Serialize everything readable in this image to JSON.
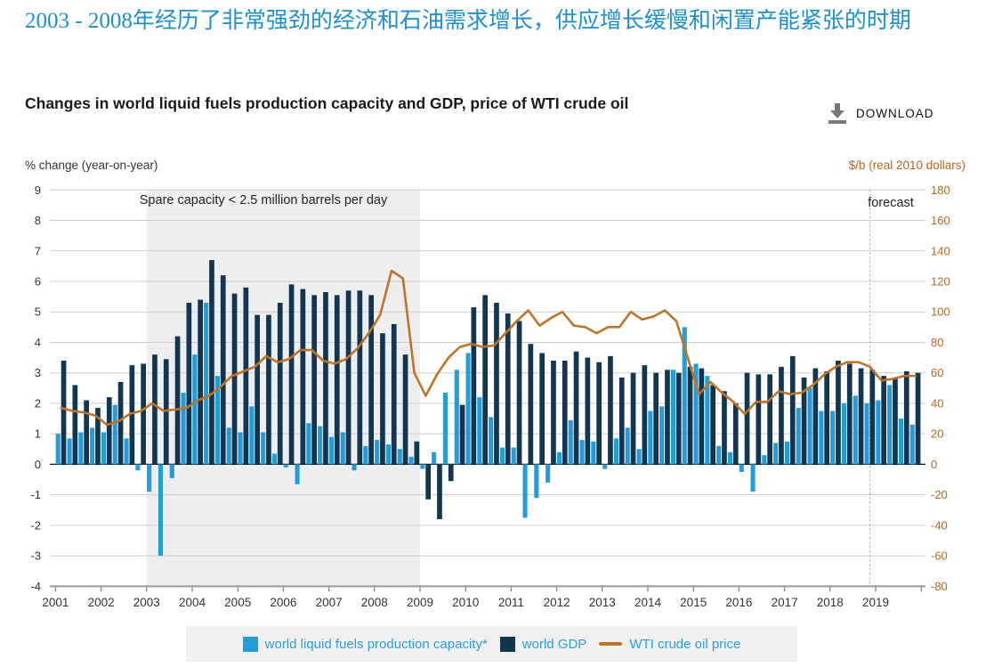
{
  "header": {
    "title_zh": "2003 - 2008年经历了非常强劲的经济和石油需求增长，供应增长缓慢和闲置产能紧张的时期",
    "chart_title": "Changes in world liquid fuels production capacity and GDP, price of WTI crude oil",
    "download_label": "DOWNLOAD"
  },
  "chart_data": {
    "type": "bar+line combo",
    "title": "Changes in world liquid fuels production capacity and GDP, price of WTI crude oil",
    "left_axis": {
      "label": "% change (year-on-year)",
      "min": -4,
      "max": 9,
      "step": 1
    },
    "right_axis": {
      "label": "$/b (real 2010 dollars)",
      "min": -80,
      "max": 180,
      "step": 20
    },
    "x": {
      "years": [
        "2001",
        "2002",
        "2003",
        "2004",
        "2005",
        "2006",
        "2007",
        "2008",
        "2009",
        "2010",
        "2011",
        "2012",
        "2013",
        "2014",
        "2015",
        "2016",
        "2017",
        "2018",
        "2019"
      ],
      "quarters_per_year": 4
    },
    "series": [
      {
        "name": "world liquid fuels production capacity*",
        "type": "bar",
        "axis": "left",
        "color": "#219dd8",
        "values": [
          1.0,
          0.85,
          1.05,
          1.2,
          1.05,
          1.95,
          0.85,
          -0.2,
          -0.9,
          -3.0,
          -0.45,
          2.35,
          3.6,
          5.3,
          2.9,
          1.2,
          1.05,
          1.9,
          1.05,
          0.35,
          -0.1,
          -0.65,
          1.35,
          1.25,
          0.9,
          1.05,
          -0.2,
          0.6,
          0.8,
          0.65,
          0.5,
          0.25,
          -0.15,
          0.4,
          2.35,
          3.1,
          3.65,
          2.2,
          1.55,
          0.55,
          0.55,
          -1.75,
          -1.1,
          -0.6,
          0.4,
          1.45,
          0.8,
          0.75,
          -0.15,
          0.85,
          1.2,
          0.5,
          1.75,
          1.9,
          3.1,
          4.5,
          3.3,
          2.9,
          0.6,
          0.4,
          -0.25,
          -0.9,
          0.3,
          0.7,
          0.75,
          1.85,
          2.5,
          1.75,
          1.75,
          2.0,
          2.25,
          2.0,
          2.1,
          2.6,
          1.5,
          1.3
        ]
      },
      {
        "name": "world GDP",
        "type": "bar",
        "axis": "left",
        "color": "#12364f",
        "values": [
          3.4,
          2.6,
          2.1,
          1.85,
          2.2,
          2.7,
          3.25,
          3.3,
          3.6,
          3.45,
          4.2,
          5.3,
          5.4,
          6.7,
          6.2,
          5.6,
          5.8,
          4.9,
          4.9,
          5.3,
          5.9,
          5.75,
          5.55,
          5.65,
          5.55,
          5.7,
          5.7,
          5.55,
          4.3,
          4.6,
          3.6,
          0.75,
          -1.15,
          -1.8,
          -0.55,
          1.95,
          5.15,
          5.55,
          5.3,
          4.95,
          4.7,
          3.95,
          3.65,
          3.4,
          3.4,
          3.7,
          3.5,
          3.35,
          3.55,
          2.85,
          3.0,
          3.25,
          3.0,
          3.1,
          3.0,
          3.2,
          3.15,
          2.6,
          2.4,
          2.0,
          3.0,
          2.95,
          2.95,
          3.2,
          3.55,
          2.85,
          3.15,
          3.05,
          3.4,
          3.3,
          3.15,
          3.1,
          2.9,
          2.85,
          3.05,
          3.0
        ]
      },
      {
        "name": "WTI crude oil price",
        "type": "line",
        "axis": "right",
        "color": "#bf7329",
        "values": [
          37,
          35,
          34,
          32,
          26,
          28,
          33,
          35,
          40,
          35,
          36,
          37,
          42,
          45,
          51,
          58,
          61,
          64,
          71,
          67,
          69,
          75,
          75,
          68,
          66,
          69,
          76,
          86,
          98,
          127,
          122,
          60,
          45,
          59,
          70,
          77,
          79,
          77,
          78,
          86,
          94,
          101,
          91,
          96,
          100,
          91,
          90,
          86,
          90,
          90,
          100,
          95,
          97,
          101,
          94,
          70,
          46,
          54,
          47,
          41,
          33,
          41,
          41,
          48,
          46,
          47,
          52,
          59,
          64,
          67,
          67,
          64,
          55,
          56,
          58,
          58
        ]
      }
    ],
    "annotations": {
      "spare_capacity": "Spare capacity < 2.5 million barrels per day",
      "forecast": "forecast"
    },
    "shaded_region": {
      "from_year": 2003,
      "to_year": 2009
    },
    "forecast_divider": {
      "after_year": 2018,
      "after_quarter": 3
    },
    "legend_position": "bottom",
    "grid": true,
    "colors": {
      "capacity": "#219dd8",
      "gdp": "#12364f",
      "wti": "#bf7329",
      "shade": "#eeeeee",
      "gridline": "#cbcbcb",
      "right_axis_text": "#b2671c",
      "title_zh": "#1e8fce",
      "legend_text": "#2b9fd9",
      "legend_bg": "#f0f0f0"
    }
  }
}
